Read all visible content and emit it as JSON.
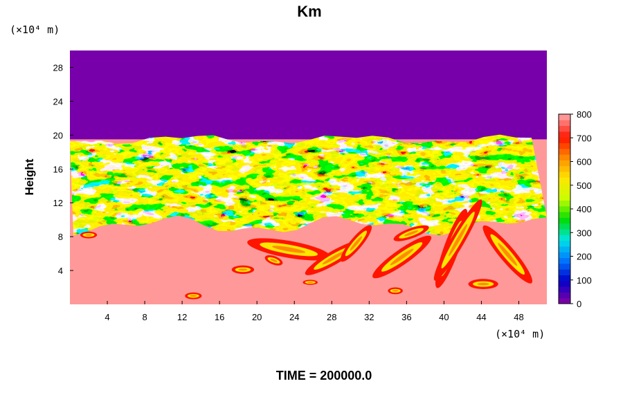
{
  "chart_data": {
    "type": "heatmap",
    "title": "Km",
    "ylabel": "Height",
    "x_unit": "(×10⁴ m)",
    "y_unit": "(×10⁴ m)",
    "xlim": [
      0,
      51
    ],
    "ylim": [
      0,
      30
    ],
    "x_ticks": [
      "4",
      "8",
      "12",
      "16",
      "20",
      "24",
      "28",
      "32",
      "36",
      "40",
      "44",
      "48"
    ],
    "y_ticks": [
      "4",
      "8",
      "12",
      "16",
      "20",
      "24",
      "28"
    ],
    "colorbar": {
      "min": 0,
      "max": 800,
      "levels": 33,
      "ticks": [
        "0",
        "100",
        "200",
        "300",
        "400",
        "500",
        "600",
        "700",
        "800"
      ],
      "colors": [
        "#7700aa",
        "#0000c8",
        "#0078ff",
        "#00e6e6",
        "#00dc00",
        "#c8ff00",
        "#ffe600",
        "#ff8c00",
        "#ff1400",
        "#ff9696"
      ]
    },
    "regions": {
      "upper_uniform": {
        "y_from": 19.5,
        "y_to": 30,
        "value": 0
      },
      "turbulent_band": {
        "y_from": 9.5,
        "y_to": 19.5,
        "value_range": [
          0,
          800
        ]
      },
      "lower_uniform": {
        "y_from": 0,
        "y_to": 9.5,
        "value": 800
      }
    }
  },
  "footer": {
    "time_label": "TIME = 200000.0"
  }
}
